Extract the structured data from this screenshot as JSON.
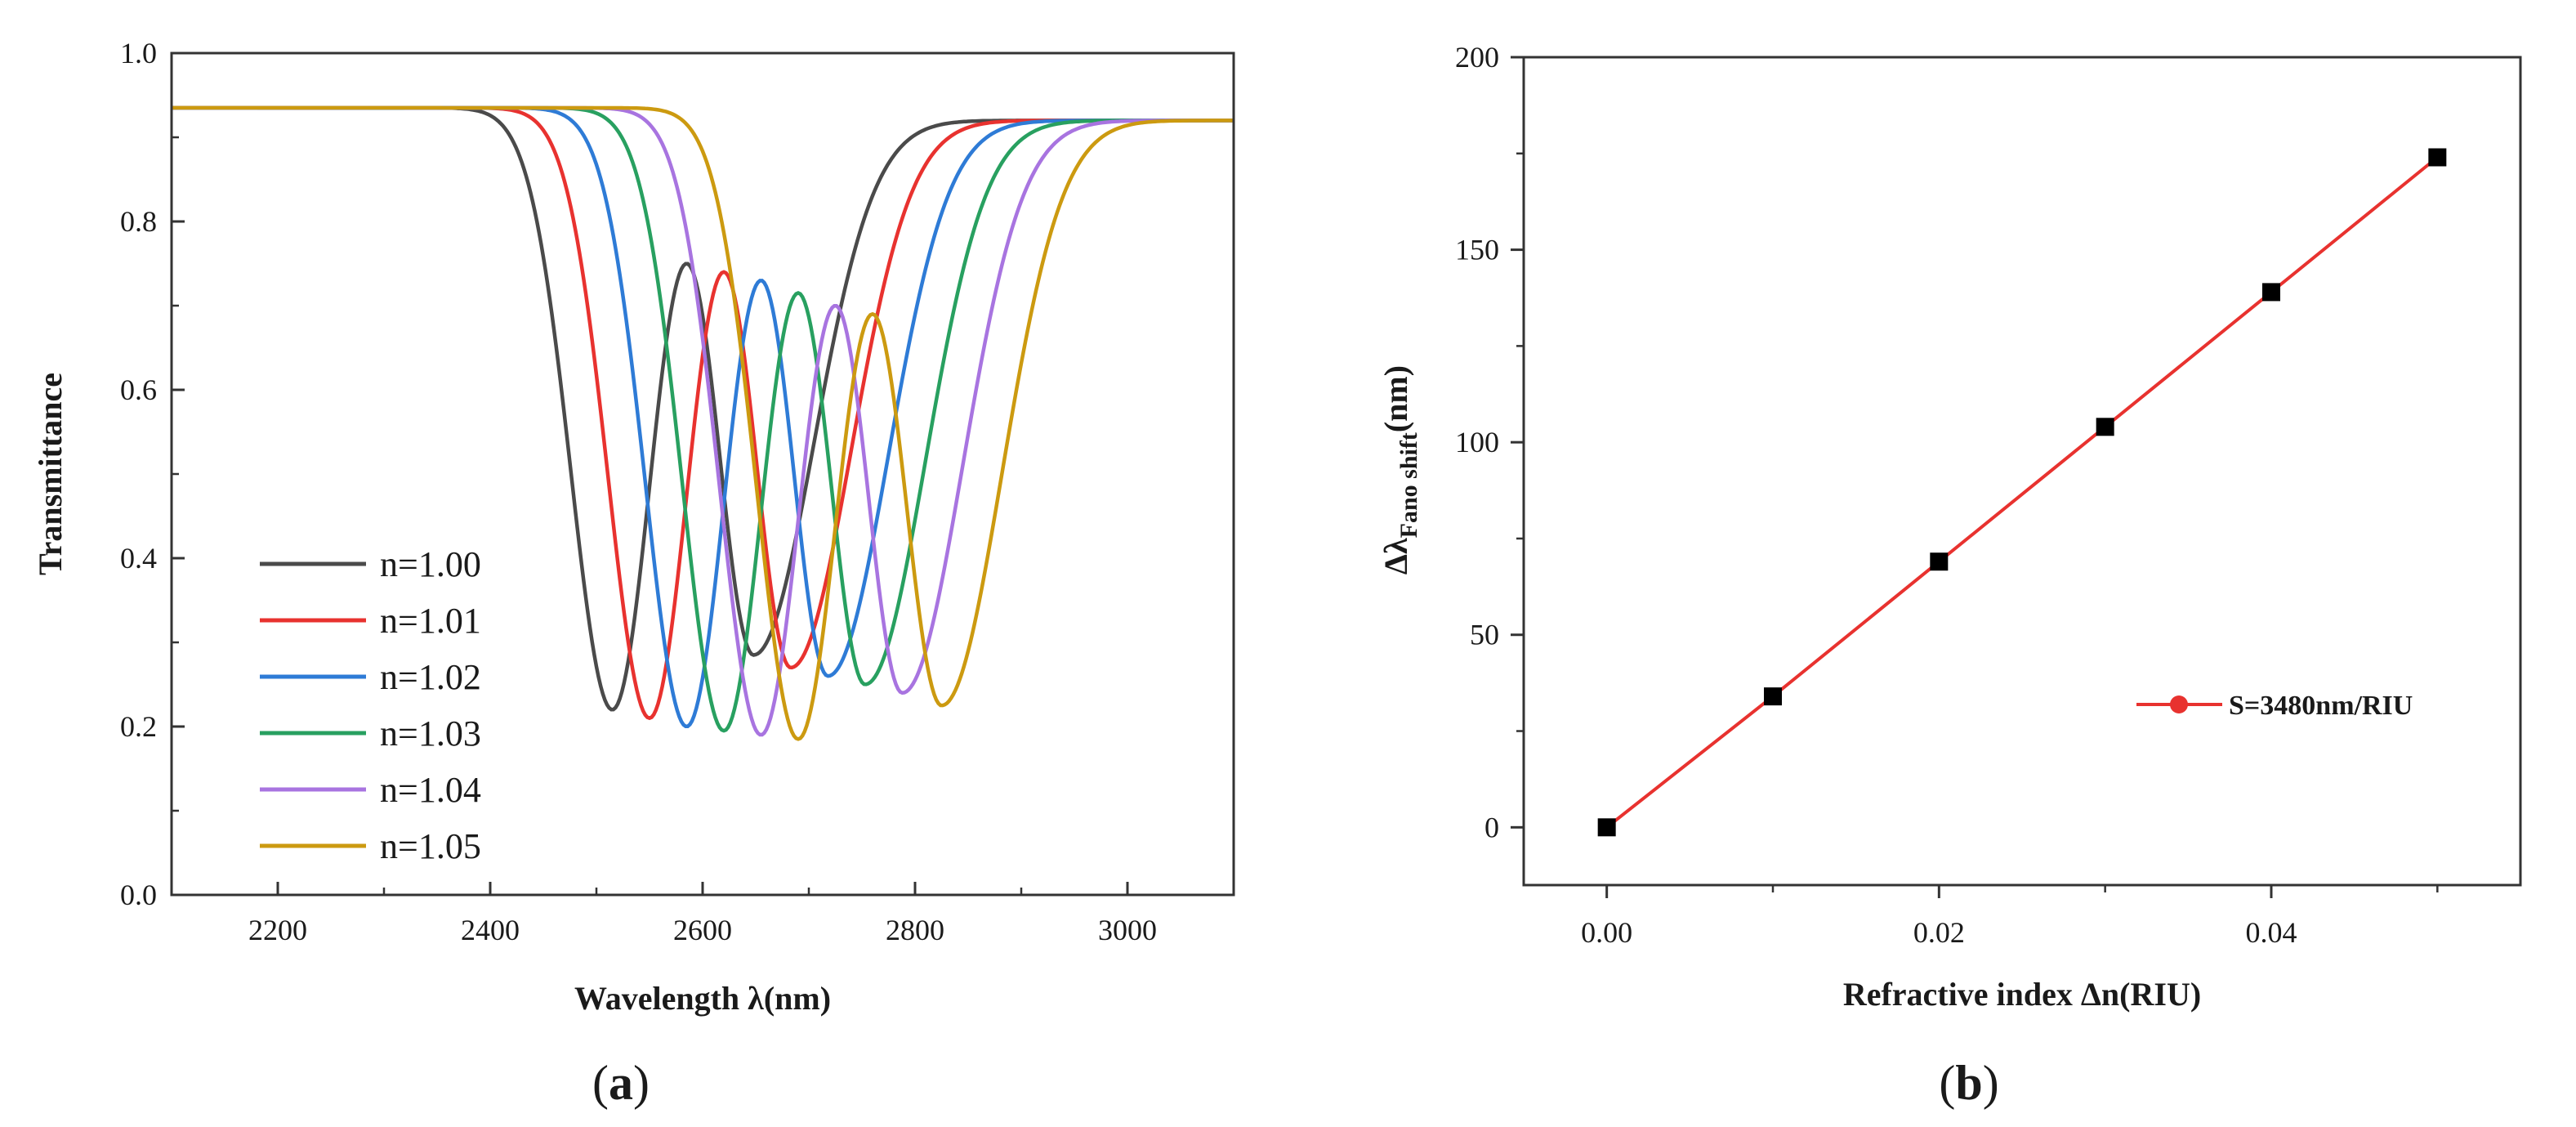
{
  "chart_data": [
    {
      "panel": "a",
      "type": "line",
      "xlabel": "Wavelength λ(nm)",
      "ylabel": "Transmittance",
      "xlim": [
        2100,
        3100
      ],
      "ylim": [
        0.0,
        1.0
      ],
      "x_ticks": [
        "2200",
        "2400",
        "2600",
        "2800",
        "3000"
      ],
      "y_ticks": [
        "0.0",
        "0.2",
        "0.4",
        "0.6",
        "0.8",
        "1.0"
      ],
      "legend_position": "bottom-left",
      "series": [
        {
          "name": "n=1.00",
          "color": "#4a4a4a",
          "dip1": {
            "x": 2515,
            "y": 0.22
          },
          "peak": {
            "x": 2585,
            "y": 0.75
          },
          "dip2": {
            "x": 2648,
            "y": 0.285
          }
        },
        {
          "name": "n=1.01",
          "color": "#e8322f",
          "dip1": {
            "x": 2550,
            "y": 0.21
          },
          "peak": {
            "x": 2620,
            "y": 0.74
          },
          "dip2": {
            "x": 2683,
            "y": 0.27
          }
        },
        {
          "name": "n=1.02",
          "color": "#2e7bd6",
          "dip1": {
            "x": 2585,
            "y": 0.2
          },
          "peak": {
            "x": 2655,
            "y": 0.73
          },
          "dip2": {
            "x": 2718,
            "y": 0.26
          }
        },
        {
          "name": "n=1.03",
          "color": "#28a060",
          "dip1": {
            "x": 2620,
            "y": 0.195
          },
          "peak": {
            "x": 2690,
            "y": 0.715
          },
          "dip2": {
            "x": 2753,
            "y": 0.25
          }
        },
        {
          "name": "n=1.04",
          "color": "#a874e0",
          "dip1": {
            "x": 2655,
            "y": 0.19
          },
          "peak": {
            "x": 2725,
            "y": 0.7
          },
          "dip2": {
            "x": 2788,
            "y": 0.24
          }
        },
        {
          "name": "n=1.05",
          "color": "#cc9a10",
          "dip1": {
            "x": 2690,
            "y": 0.185
          },
          "peak": {
            "x": 2760,
            "y": 0.69
          },
          "dip2": {
            "x": 2825,
            "y": 0.225
          }
        }
      ],
      "panel_label": {
        "open": "(",
        "letter": "a",
        "close": ")"
      }
    },
    {
      "panel": "b",
      "type": "line",
      "xlabel": "Refractive index  Δn(RIU)",
      "ylabel_main": "Δλ",
      "ylabel_sub": "Fano shift",
      "ylabel_unit": "(nm)",
      "xlim": [
        -0.005,
        0.055
      ],
      "ylim": [
        -15,
        200
      ],
      "x_ticks": [
        "0.00",
        "0.02",
        "0.04"
      ],
      "y_ticks": [
        "0",
        "50",
        "100",
        "150",
        "200"
      ],
      "legend_position": "right",
      "line_color": "#e8322f",
      "marker_color": "#000000",
      "series": [
        {
          "name": "S=3480nm/RIU",
          "x": [
            0.0,
            0.01,
            0.02,
            0.03,
            0.04,
            0.05
          ],
          "y": [
            0,
            34,
            69,
            104,
            139,
            174
          ]
        }
      ],
      "panel_label": {
        "open": "(",
        "letter": "b",
        "close": ")"
      }
    }
  ]
}
